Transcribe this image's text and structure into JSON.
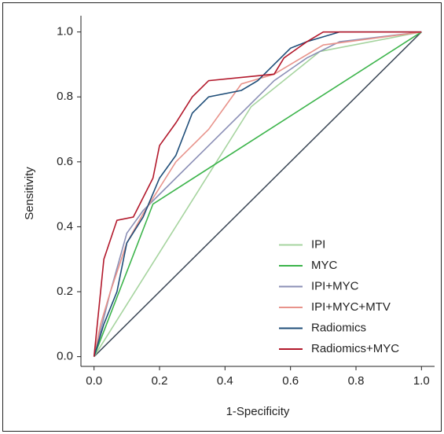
{
  "chart_data": {
    "type": "line",
    "xlabel": "1-Specificity",
    "ylabel": "Sensitivity",
    "xlim": [
      -0.04,
      1.04
    ],
    "ylim": [
      -0.03,
      1.05
    ],
    "xticks": [
      {
        "value": 0,
        "label": "0.0"
      },
      0.2,
      0.4,
      0.6,
      0.8,
      {
        "value": 1,
        "label": "1.0"
      }
    ],
    "yticks": [
      {
        "value": 0,
        "label": "0.0"
      },
      0.2,
      0.4,
      0.6,
      0.8,
      {
        "value": 1,
        "label": "1.0"
      }
    ],
    "legend": "lower right",
    "reference_line": {
      "x": [
        0,
        1
      ],
      "values": [
        0,
        1
      ],
      "color": "#3b4756"
    },
    "series": [
      {
        "name": "IPI",
        "color": "#a6d49f",
        "x": [
          0,
          0.48,
          0.69,
          1
        ],
        "values": [
          0,
          0.77,
          0.94,
          1
        ]
      },
      {
        "name": "MYC",
        "color": "#3cb44b",
        "x": [
          0,
          0.18,
          1
        ],
        "values": [
          0,
          0.47,
          1
        ]
      },
      {
        "name": "IPI+MYC",
        "color": "#8b8fb6",
        "x": [
          0,
          0.05,
          0.1,
          0.15,
          0.2,
          0.3,
          0.45,
          0.55,
          0.65,
          0.75,
          1
        ],
        "values": [
          0,
          0.2,
          0.38,
          0.45,
          0.5,
          0.6,
          0.75,
          0.85,
          0.92,
          0.97,
          1
        ]
      },
      {
        "name": "IPI+MYC+MTV",
        "color": "#e8938b",
        "x": [
          0,
          0.02,
          0.05,
          0.1,
          0.15,
          0.2,
          0.25,
          0.3,
          0.35,
          0.4,
          0.45,
          0.55,
          0.6,
          0.7,
          1
        ],
        "values": [
          0,
          0.1,
          0.2,
          0.35,
          0.44,
          0.52,
          0.6,
          0.65,
          0.7,
          0.77,
          0.84,
          0.87,
          0.9,
          0.96,
          1
        ]
      },
      {
        "name": "Radiomics",
        "color": "#1f4e79",
        "x": [
          0,
          0.03,
          0.07,
          0.1,
          0.15,
          0.2,
          0.25,
          0.3,
          0.35,
          0.45,
          0.5,
          0.55,
          0.6,
          0.65,
          0.75,
          1
        ],
        "values": [
          0,
          0.1,
          0.2,
          0.35,
          0.43,
          0.55,
          0.62,
          0.75,
          0.8,
          0.82,
          0.85,
          0.9,
          0.95,
          0.97,
          1,
          1
        ]
      },
      {
        "name": "Radiomics+MYC",
        "color": "#b2182b",
        "x": [
          0,
          0.01,
          0.03,
          0.07,
          0.12,
          0.18,
          0.2,
          0.25,
          0.3,
          0.35,
          0.55,
          0.58,
          0.65,
          0.7,
          1
        ],
        "values": [
          0,
          0.1,
          0.3,
          0.42,
          0.43,
          0.55,
          0.65,
          0.72,
          0.8,
          0.85,
          0.87,
          0.92,
          0.97,
          1,
          1
        ]
      }
    ]
  }
}
